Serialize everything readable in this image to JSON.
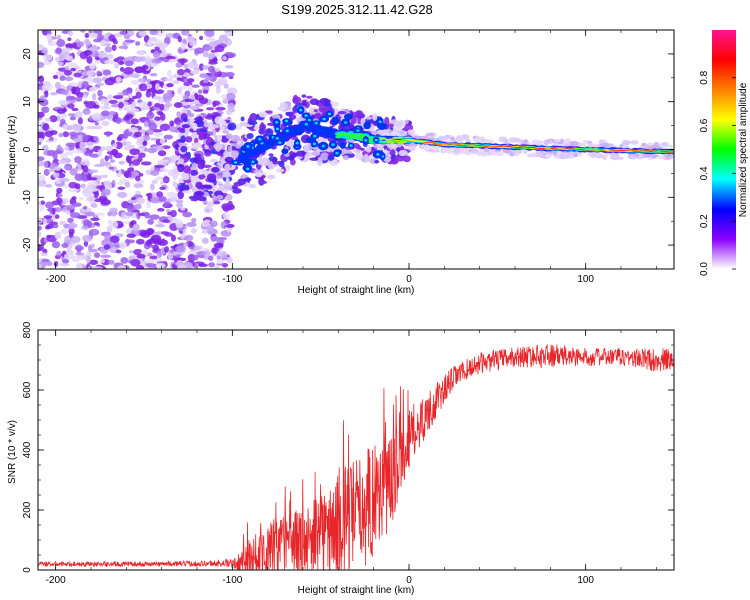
{
  "title": "S199.2025.312.11.42.G28",
  "spectrogram": {
    "type": "heatmap",
    "xlabel": "Height of straight line (km)",
    "ylabel": "Frequency (Hz)",
    "xlim": [
      -210,
      150
    ],
    "ylim": [
      -25,
      25
    ],
    "xticks": [
      "-200",
      "-100",
      "0",
      "100"
    ],
    "yticks": [
      "20",
      "10",
      "0",
      "-10",
      "-20"
    ],
    "noise_region": [
      -210,
      -100
    ],
    "ridge": {
      "x": [
        -100,
        -90,
        -80,
        -70,
        -60,
        -50,
        -40,
        -30,
        -20,
        -10,
        0,
        10,
        20,
        40,
        60,
        80,
        100,
        120,
        150
      ],
      "freq": [
        -2,
        -1,
        1,
        3,
        5,
        4,
        3,
        3,
        2,
        2,
        2,
        1.5,
        1,
        0.8,
        0.5,
        0.2,
        0,
        -0.2,
        -0.5
      ]
    },
    "colorbar": {
      "label": "Normalized spectral amplitude",
      "range": [
        0,
        1
      ],
      "ticks": [
        "0.0",
        "0.2",
        "0.4",
        "0.6",
        "0.8"
      ],
      "colors": [
        "#ffffff",
        "#8b00ff",
        "#0000ff",
        "#00ffff",
        "#00ff00",
        "#ffff00",
        "#ff8000",
        "#ff0000",
        "#ff1493"
      ]
    }
  },
  "chart_data": {
    "type": "line",
    "xlabel": "Height of straight line (km)",
    "ylabel": "SNR (10 * v/v)",
    "xlim": [
      -210,
      150
    ],
    "ylim": [
      0,
      800
    ],
    "xticks": [
      "-200",
      "-100",
      "0",
      "100"
    ],
    "yticks": [
      "800",
      "600",
      "400",
      "200",
      "0"
    ],
    "color": "#e8262a",
    "envelope": {
      "x": [
        -210,
        -200,
        -150,
        -110,
        -100,
        -95,
        -90,
        -80,
        -70,
        -60,
        -50,
        -40,
        -30,
        -20,
        -15,
        -10,
        -5,
        0,
        5,
        10,
        15,
        20,
        25,
        30,
        40,
        50,
        60,
        80,
        100,
        120,
        140,
        150
      ],
      "base": [
        20,
        20,
        20,
        22,
        22,
        25,
        40,
        60,
        80,
        90,
        110,
        140,
        180,
        240,
        270,
        300,
        380,
        440,
        480,
        520,
        560,
        600,
        640,
        660,
        690,
        700,
        710,
        715,
        710,
        710,
        700,
        700
      ],
      "spread": [
        8,
        8,
        8,
        10,
        15,
        40,
        80,
        100,
        110,
        120,
        150,
        180,
        200,
        200,
        180,
        160,
        120,
        100,
        90,
        70,
        60,
        50,
        40,
        35,
        35,
        35,
        35,
        40,
        30,
        30,
        40,
        40
      ]
    }
  }
}
